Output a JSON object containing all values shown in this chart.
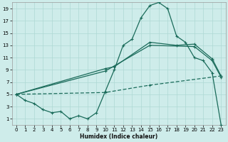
{
  "xlabel": "Humidex (Indice chaleur)",
  "bg_color": "#ceecea",
  "grid_color": "#aed8d4",
  "line_color": "#1a6b5a",
  "xlim": [
    -0.5,
    23.5
  ],
  "ylim": [
    0,
    20
  ],
  "xticks": [
    0,
    1,
    2,
    3,
    4,
    5,
    6,
    7,
    8,
    9,
    10,
    11,
    12,
    13,
    14,
    15,
    16,
    17,
    18,
    19,
    20,
    21,
    22,
    23
  ],
  "yticks": [
    1,
    3,
    5,
    7,
    9,
    11,
    13,
    15,
    17,
    19
  ],
  "line1_x": [
    0,
    1,
    2,
    3,
    4,
    5,
    6,
    7,
    8,
    9,
    10,
    11,
    12,
    13,
    14,
    15,
    16,
    17,
    18,
    19,
    20,
    21,
    22,
    23
  ],
  "line1_y": [
    5,
    4,
    3.5,
    2.5,
    2,
    2.2,
    1,
    1.5,
    1,
    2,
    5.5,
    9,
    13,
    14,
    17.5,
    19.5,
    20,
    19,
    14.5,
    13.5,
    11,
    10.5,
    8.5,
    0
  ],
  "line2_x": [
    0,
    10,
    11,
    15,
    18,
    20,
    22,
    23
  ],
  "line2_y": [
    5,
    9.2,
    9.5,
    13.5,
    13,
    13.2,
    10.8,
    8
  ],
  "line3_x": [
    0,
    10,
    15,
    20,
    22,
    23
  ],
  "line3_y": [
    5,
    8.8,
    13,
    12.8,
    10.5,
    7.8
  ],
  "line4_x": [
    0,
    10,
    15,
    23
  ],
  "line4_y": [
    5,
    5.3,
    6.5,
    8
  ]
}
